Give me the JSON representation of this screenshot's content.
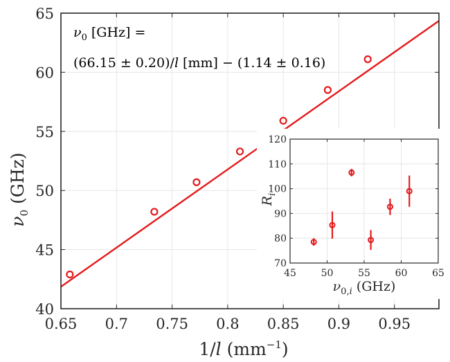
{
  "chart_data": [
    {
      "type": "scatter",
      "xlabel": "1/l (mm⁻¹)",
      "ylabel": "ν₀ (GHz)",
      "xlim": [
        0.65,
        0.99
      ],
      "ylim": [
        40,
        65
      ],
      "xticks": [
        0.65,
        0.7,
        0.75,
        0.8,
        0.85,
        0.9,
        0.95
      ],
      "xtick_labels": [
        "0.65",
        "0.7",
        "0.75",
        "0.8",
        "0.85",
        "0.9",
        "0.95"
      ],
      "yticks": [
        40,
        45,
        50,
        55,
        60,
        65
      ],
      "ytick_labels": [
        "40",
        "45",
        "50",
        "55",
        "60",
        "65"
      ],
      "grid": true,
      "series": [
        {
          "color": "#e41a1c",
          "marker": "circle",
          "x": [
            0.658,
            0.734,
            0.772,
            0.811,
            0.85,
            0.89,
            0.926
          ],
          "y": [
            42.9,
            48.2,
            50.7,
            53.3,
            55.9,
            58.5,
            61.1
          ]
        }
      ],
      "fit_line": {
        "slope": 66.15,
        "intercept": -1.14,
        "color": "#e41a1c"
      },
      "annotation": {
        "line1": "ν₀ [GHz] =",
        "line2": "(66.15 ± 0.20)/l [mm] − (1.14 ± 0.16)"
      }
    },
    {
      "type": "scatter",
      "inset": true,
      "xlabel": "ν₀,ᵢ (GHz)",
      "ylabel": "Rᵢ",
      "xlim": [
        45,
        65
      ],
      "ylim": [
        70,
        120
      ],
      "xticks": [
        45,
        50,
        55,
        60,
        65
      ],
      "xtick_labels": [
        "45",
        "50",
        "55",
        "60",
        "65"
      ],
      "yticks": [
        70,
        80,
        90,
        100,
        110,
        120
      ],
      "ytick_labels": [
        "70",
        "80",
        "90",
        "100",
        "110",
        "120"
      ],
      "grid": true,
      "series": [
        {
          "color": "#e41a1c",
          "marker": "circle",
          "x": [
            48.2,
            50.7,
            53.3,
            55.9,
            58.5,
            61.1
          ],
          "y": [
            78.5,
            85.3,
            106.5,
            79.3,
            92.7,
            99.0
          ],
          "err": [
            1.5,
            5.5,
            1.5,
            4.0,
            3.3,
            6.3
          ]
        }
      ]
    }
  ]
}
